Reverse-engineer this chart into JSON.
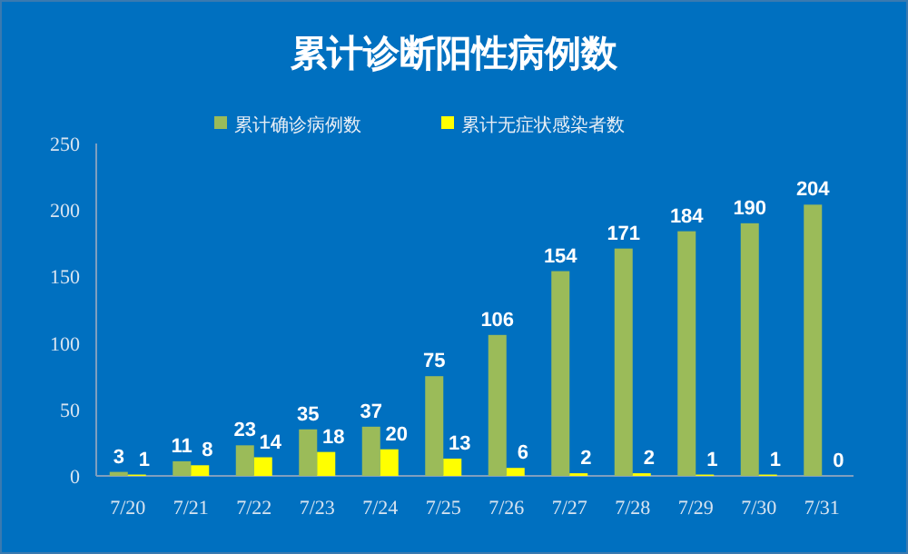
{
  "chart_data": {
    "type": "bar",
    "title": "累计诊断阳性病例数",
    "categories": [
      "7/20",
      "7/21",
      "7/22",
      "7/23",
      "7/24",
      "7/25",
      "7/26",
      "7/27",
      "7/28",
      "7/29",
      "7/30",
      "7/31"
    ],
    "series": [
      {
        "name": "累计确诊病例数",
        "color": "#9bbb59",
        "values": [
          3,
          11,
          23,
          35,
          37,
          75,
          106,
          154,
          171,
          184,
          190,
          204
        ]
      },
      {
        "name": "累计无症状感染者数",
        "color": "#ffff00",
        "values": [
          1,
          8,
          14,
          18,
          20,
          13,
          6,
          2,
          2,
          1,
          1,
          0
        ]
      }
    ],
    "ylim": [
      0,
      250
    ],
    "yticks": [
      0,
      50,
      100,
      150,
      200,
      250
    ],
    "grid": false,
    "legend": "top",
    "data_labels": true
  }
}
